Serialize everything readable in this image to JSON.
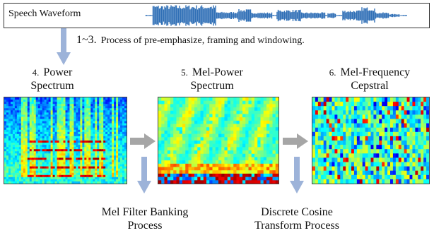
{
  "waveform": {
    "label": "Speech Waveform"
  },
  "preprocess": {
    "step_num": "1~3.",
    "label": "Process of pre-emphasize, framing and windowing."
  },
  "stages": [
    {
      "num": "4.",
      "line1": "Power",
      "line2": "Spectrum"
    },
    {
      "num": "5.",
      "line1": "Mel-Power",
      "line2": "Spectrum"
    },
    {
      "num": "6.",
      "line1": "Mel-Frequency",
      "line2": "Cepstral"
    }
  ],
  "processes": {
    "mel_filter": {
      "line1": "Mel Filter Banking",
      "line2": "Process"
    },
    "dct": {
      "line1": "Discrete Cosine",
      "line2": "Transform Process"
    }
  },
  "colors": {
    "arrow": "#9db3d9",
    "arrow_gray": "#a6a6a6",
    "waveform": "#2f6fb6"
  }
}
